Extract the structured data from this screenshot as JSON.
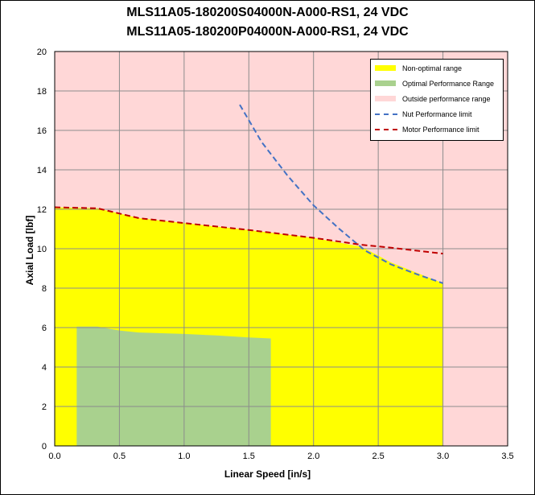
{
  "chart_data": {
    "type": "area",
    "title_line1": "MLS11A05-180200S04000N-A000-RS1, 24 VDC",
    "title_line2": "MLS11A05-180200P04000N-A000-RS1, 24 VDC",
    "xlabel": "Linear Speed [in/s]",
    "ylabel": "Axial Load [lbf]",
    "xlim": [
      0,
      3.5
    ],
    "ylim": [
      0,
      20
    ],
    "xticks": [
      "0.0",
      "0.5",
      "1.0",
      "1.5",
      "2.0",
      "2.5",
      "3.0",
      "3.5"
    ],
    "yticks": [
      "0",
      "2",
      "4",
      "6",
      "8",
      "10",
      "12",
      "14",
      "16",
      "18",
      "20"
    ],
    "grid": true,
    "legend_position": "top-right",
    "background_color": "#ffd7d7",
    "series": [
      {
        "name": "Non-optimal range",
        "kind": "area",
        "color": "#ffff00",
        "x": [
          0.0,
          0.33,
          0.65,
          1.0,
          1.5,
          2.0,
          2.37,
          2.6,
          3.0
        ],
        "y": [
          12.1,
          12.05,
          11.55,
          11.3,
          10.95,
          10.55,
          10.1,
          9.3,
          8.25
        ]
      },
      {
        "name": "Optimal Performance Range",
        "kind": "area",
        "color": "#a9d18e",
        "x": [
          0.17,
          0.33,
          0.5,
          0.65,
          1.0,
          1.25,
          1.5,
          1.67
        ],
        "y": [
          6.05,
          6.05,
          5.85,
          5.75,
          5.68,
          5.6,
          5.5,
          5.45
        ]
      },
      {
        "name": "Outside performance range",
        "kind": "area",
        "color": "#ffd7d7"
      },
      {
        "name": "Nut Performance limit",
        "kind": "dashed-line",
        "color": "#4472c4",
        "x": [
          1.43,
          1.6,
          1.8,
          2.0,
          2.2,
          2.4,
          2.6,
          2.8,
          3.0
        ],
        "y": [
          17.3,
          15.4,
          13.7,
          12.2,
          11.0,
          9.9,
          9.2,
          8.7,
          8.25
        ]
      },
      {
        "name": "Motor Performance limit",
        "kind": "dashed-line",
        "color": "#c00000",
        "x": [
          0.0,
          0.33,
          0.65,
          1.0,
          1.5,
          2.0,
          2.37,
          2.6,
          3.0
        ],
        "y": [
          12.1,
          12.05,
          11.55,
          11.3,
          10.95,
          10.55,
          10.2,
          10.05,
          9.75
        ]
      }
    ]
  }
}
